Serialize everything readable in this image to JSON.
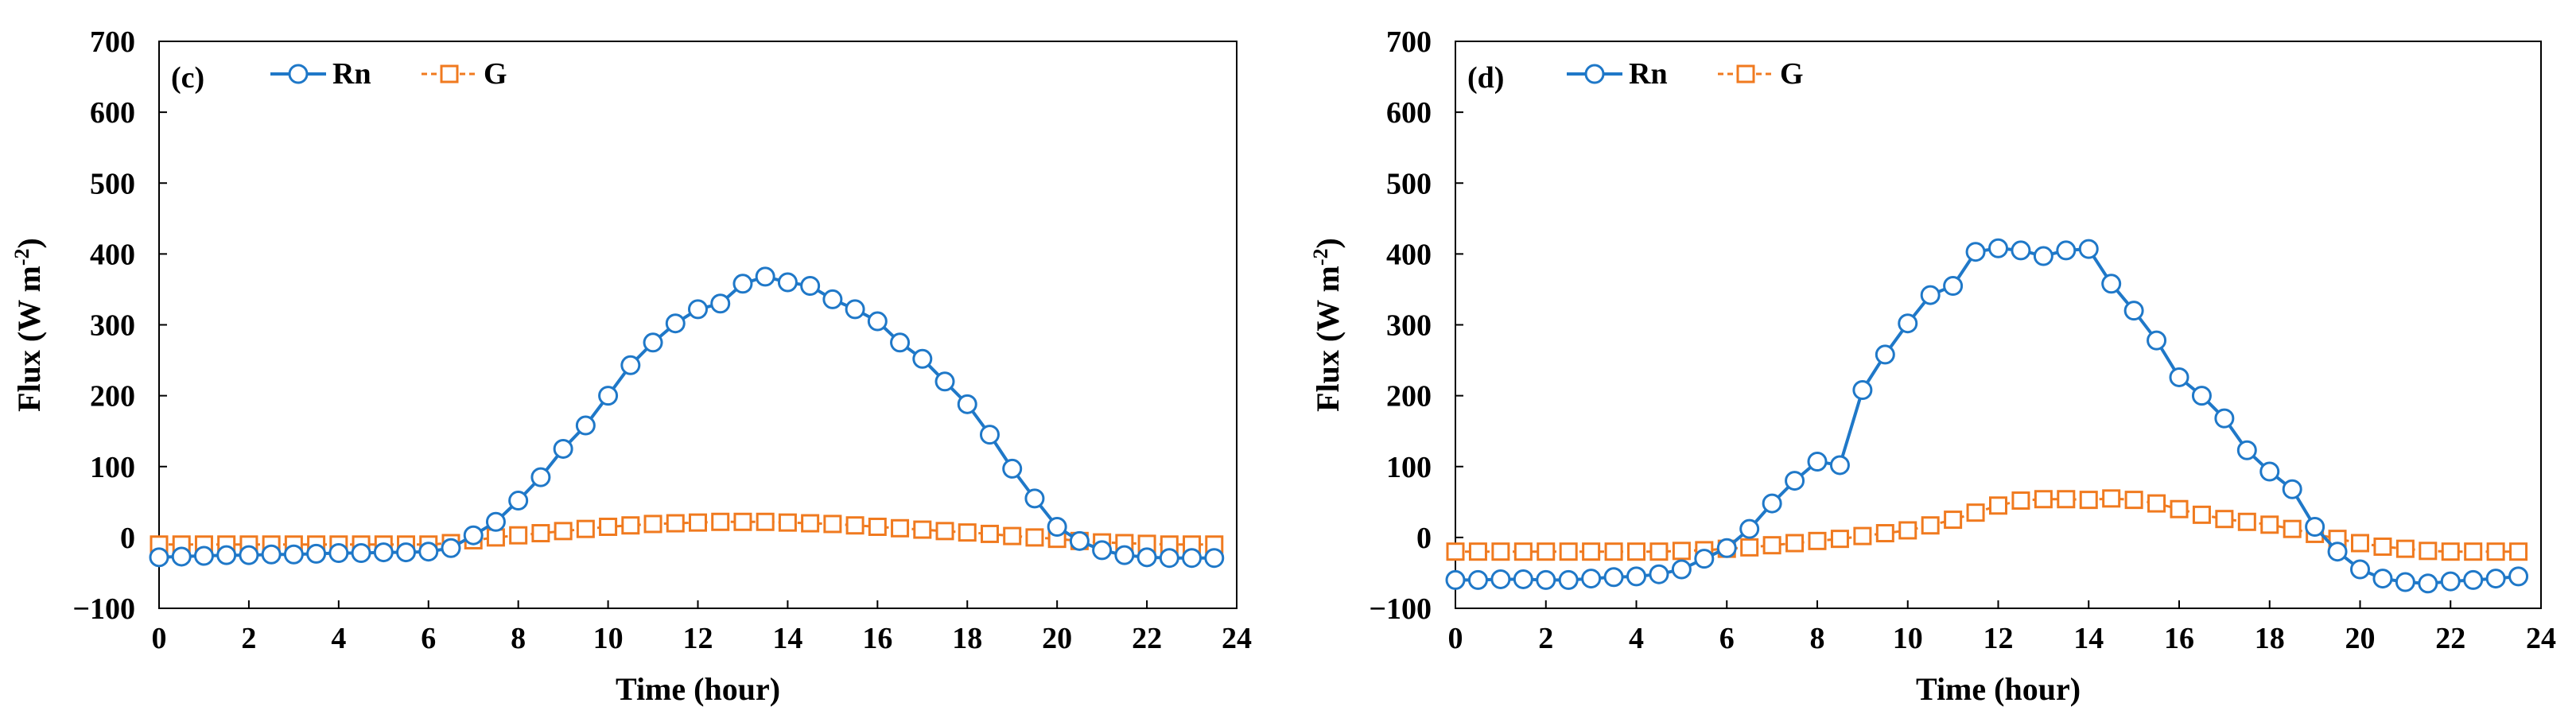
{
  "colors": {
    "rn": "#1F78C8",
    "g": "#F07A1F",
    "axis": "#000000"
  },
  "chart_data": [
    {
      "type": "line",
      "panel_label": "(c)",
      "xlabel": "Time (hour)",
      "ylabel": "Flux (W m-2)",
      "ylabel_parts": {
        "main": "Flux (W m",
        "sup": "-2",
        "end": ")"
      },
      "xlim": [
        0,
        24
      ],
      "ylim": [
        -100,
        700
      ],
      "xticks": [
        0,
        2,
        4,
        6,
        8,
        10,
        12,
        14,
        16,
        18,
        20,
        22,
        24
      ],
      "yticks": [
        -100,
        0,
        100,
        200,
        300,
        400,
        500,
        600,
        700
      ],
      "legend": [
        "Rn",
        "G"
      ],
      "x": [
        0,
        0.5,
        1,
        1.5,
        2,
        2.5,
        3,
        3.5,
        4,
        4.5,
        5,
        5.5,
        6,
        6.5,
        7,
        7.5,
        8,
        8.5,
        9,
        9.5,
        10,
        10.5,
        11,
        11.5,
        12,
        12.5,
        13,
        13.5,
        14,
        14.5,
        15,
        15.5,
        16,
        16.5,
        17,
        17.5,
        18,
        18.5,
        19,
        19.5,
        20,
        20.5,
        21,
        21.5,
        22,
        22.5,
        23,
        23.5
      ],
      "series": [
        {
          "name": "Rn",
          "marker": "circle",
          "values": [
            -28,
            -27,
            -26,
            -25,
            -25,
            -24,
            -24,
            -23,
            -22,
            -22,
            -21,
            -21,
            -20,
            -15,
            3,
            22,
            52,
            85,
            125,
            158,
            200,
            243,
            275,
            302,
            322,
            330,
            358,
            368,
            360,
            355,
            336,
            322,
            305,
            275,
            252,
            220,
            188,
            145,
            97,
            55,
            15,
            -5,
            -18,
            -25,
            -28,
            -29,
            -29,
            -29
          ]
        },
        {
          "name": "G",
          "marker": "square",
          "values": [
            -10,
            -10,
            -10,
            -10,
            -10,
            -10,
            -10,
            -10,
            -10,
            -10,
            -10,
            -10,
            -10,
            -8,
            -4,
            0,
            3,
            6,
            9,
            12,
            15,
            17,
            19,
            20,
            21,
            22,
            22,
            22,
            21,
            20,
            19,
            17,
            15,
            13,
            11,
            9,
            7,
            5,
            2,
            0,
            -2,
            -5,
            -7,
            -8,
            -9,
            -10,
            -10,
            -10
          ]
        }
      ]
    },
    {
      "type": "line",
      "panel_label": "(d)",
      "xlabel": "Time (hour)",
      "ylabel": "Flux (W m-2)",
      "ylabel_parts": {
        "main": "Flux (W m",
        "sup": "-2",
        "end": ")"
      },
      "xlim": [
        0,
        24
      ],
      "ylim": [
        -100,
        700
      ],
      "xticks": [
        0,
        2,
        4,
        6,
        8,
        10,
        12,
        14,
        16,
        18,
        20,
        22,
        24
      ],
      "yticks": [
        -100,
        0,
        100,
        200,
        300,
        400,
        500,
        600,
        700
      ],
      "legend": [
        "Rn",
        "G"
      ],
      "x": [
        0,
        0.5,
        1,
        1.5,
        2,
        2.5,
        3,
        3.5,
        4,
        4.5,
        5,
        5.5,
        6,
        6.5,
        7,
        7.5,
        8,
        8.5,
        9,
        9.5,
        10,
        10.5,
        11,
        11.5,
        12,
        12.5,
        13,
        13.5,
        14,
        14.5,
        15,
        15.5,
        16,
        16.5,
        17,
        17.5,
        18,
        18.5,
        19,
        19.5,
        20,
        20.5,
        21,
        21.5,
        22,
        22.5,
        23,
        23.5
      ],
      "series": [
        {
          "name": "Rn",
          "marker": "circle",
          "values": [
            -60,
            -60,
            -59,
            -59,
            -60,
            -60,
            -58,
            -56,
            -55,
            -52,
            -45,
            -30,
            -15,
            12,
            48,
            80,
            107,
            102,
            208,
            258,
            302,
            342,
            355,
            403,
            408,
            405,
            397,
            405,
            407,
            358,
            320,
            278,
            226,
            200,
            168,
            123,
            93,
            68,
            15,
            -20,
            -45,
            -58,
            -63,
            -65,
            -62,
            -60,
            -58,
            -55
          ]
        },
        {
          "name": "G",
          "marker": "square",
          "values": [
            -20,
            -20,
            -20,
            -20,
            -20,
            -20,
            -20,
            -20,
            -20,
            -20,
            -19,
            -18,
            -16,
            -14,
            -11,
            -8,
            -5,
            -2,
            2,
            6,
            10,
            17,
            25,
            35,
            45,
            52,
            54,
            54,
            53,
            55,
            53,
            48,
            40,
            32,
            26,
            22,
            18,
            12,
            5,
            -2,
            -8,
            -13,
            -16,
            -19,
            -20,
            -20,
            -20,
            -20
          ]
        }
      ]
    }
  ]
}
